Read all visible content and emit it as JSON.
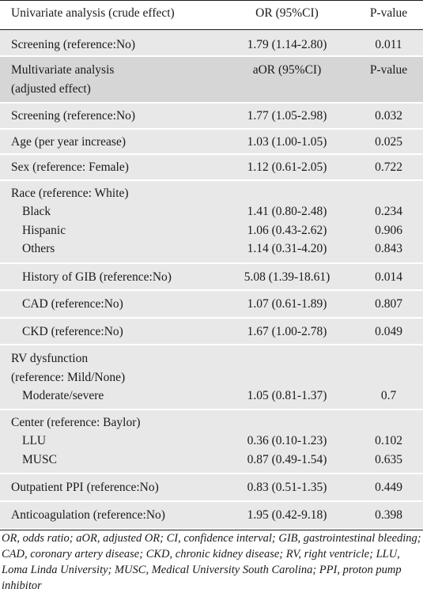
{
  "header": {
    "col1": "Univariate analysis (crude effect)",
    "col2": "OR (95%CI)",
    "col3": "P-value"
  },
  "univariate": {
    "screening": {
      "label": "Screening (reference:No)",
      "or": "1.79 (1.14-2.80)",
      "p": "0.011"
    }
  },
  "multivariate_header": {
    "label_line1": "Multivariate analysis",
    "label_line2": "(adjusted effect)",
    "col2": "aOR (95%CI)",
    "col3": "P-value"
  },
  "multivariate": {
    "screening": {
      "label": "Screening (reference:No)",
      "or": "1.77 (1.05-2.98)",
      "p": "0.032"
    },
    "age": {
      "label": "Age (per year increase)",
      "or": "1.03 (1.00-1.05)",
      "p": "0.025"
    },
    "sex": {
      "label": "Sex (reference: Female)",
      "or": "1.12 (0.61-2.05)",
      "p": "0.722"
    },
    "race": {
      "label": "Race (reference: White)",
      "items": [
        {
          "label": "Black",
          "or": "1.41 (0.80-2.48)",
          "p": "0.234"
        },
        {
          "label": "Hispanic",
          "or": "1.06 (0.43-2.62)",
          "p": "0.906"
        },
        {
          "label": "Others",
          "or": "1.14 (0.31-4.20)",
          "p": "0.843"
        }
      ]
    },
    "gib": {
      "label": "History of GIB (reference:No)",
      "or": "5.08 (1.39-18.61)",
      "p": "0.014"
    },
    "cad": {
      "label": "CAD (reference:No)",
      "or": "1.07 (0.61-1.89)",
      "p": "0.807"
    },
    "ckd": {
      "label": "CKD (reference:No)",
      "or": "1.67 (1.00-2.78)",
      "p": "0.049"
    },
    "rv": {
      "label_line1": "RV dysfunction",
      "label_line2": "(reference: Mild/None)",
      "item": {
        "label": "Moderate/severe",
        "or": "1.05 (0.81-1.37)",
        "p": "0.7"
      }
    },
    "center": {
      "label": "Center (reference: Baylor)",
      "items": [
        {
          "label": "LLU",
          "or": "0.36 (0.10-1.23)",
          "p": "0.102"
        },
        {
          "label": "MUSC",
          "or": "0.87 (0.49-1.54)",
          "p": "0.635"
        }
      ]
    },
    "ppi": {
      "label": "Outpatient PPI (reference:No)",
      "or": "0.83 (0.51-1.35)",
      "p": "0.449"
    },
    "anticoag": {
      "label": "Anticoagulation (reference:No)",
      "or": "1.95 (0.42-9.18)",
      "p": "0.398"
    }
  },
  "footnote": "OR, odds ratio; aOR, adjusted OR; CI, confidence interval; GIB, gastrointestinal bleeding; CAD, coronary artery disease; CKD, chronic kidney disease; RV, right ventricle; LLU, Loma Linda University; MUSC, Medical University South Carolina; PPI, proton pump inhibitor"
}
